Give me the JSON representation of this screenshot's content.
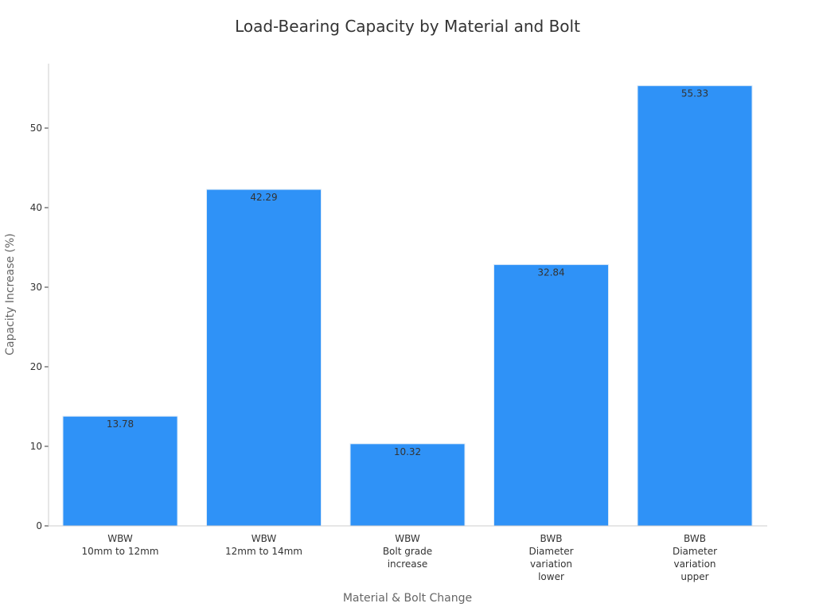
{
  "chart_data": {
    "type": "bar",
    "title": "Load-Bearing Capacity by Material and Bolt",
    "xlabel": "Material & Bolt Change",
    "ylabel": "Capacity Increase (%)",
    "categories": [
      [
        "WBW",
        "10mm to 12mm"
      ],
      [
        "WBW",
        "12mm to 14mm"
      ],
      [
        "WBW",
        "Bolt grade",
        "increase"
      ],
      [
        "BWB",
        "Diameter",
        "variation",
        "lower"
      ],
      [
        "BWB",
        "Diameter",
        "variation",
        "upper"
      ]
    ],
    "values": [
      13.78,
      42.29,
      10.32,
      32.84,
      55.33
    ],
    "data_labels": [
      "13.78",
      "42.29",
      "10.32",
      "32.84",
      "55.33"
    ],
    "yticks": [
      0,
      10,
      20,
      30,
      40,
      50
    ],
    "ylim": [
      0,
      58.1
    ],
    "grid": false,
    "colors": {
      "bar": "#2f92f7",
      "bar_edge": "#dbe9f7"
    }
  }
}
